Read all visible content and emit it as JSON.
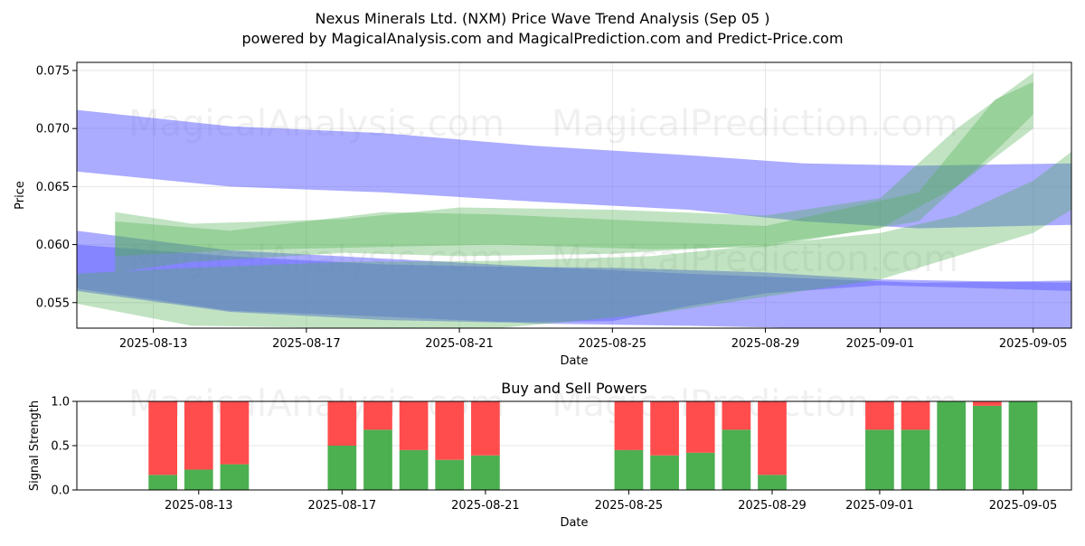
{
  "title": "Nexus Minerals Ltd. (NXM) Price Wave Trend Analysis (Sep 05 )",
  "subtitle": "powered by MagicalAnalysis.com and MagicalPrediction.com and Predict-Price.com",
  "watermarks": [
    "MagicalAnalysis.com",
    "MagicalPrediction.com"
  ],
  "colors": {
    "blue_band": "#6666ff",
    "green_band": "#4caf50",
    "buy": "#4caf50",
    "sell": "#ff4d4d"
  },
  "chart_data": [
    {
      "type": "area",
      "xlabel": "Date",
      "ylabel": "Price",
      "x_tick_labels": [
        "2025-08-13",
        "2025-08-17",
        "2025-08-21",
        "2025-08-25",
        "2025-08-29",
        "2025-09-01",
        "2025-09-05"
      ],
      "y_tick_labels": [
        "0.055",
        "0.060",
        "0.065",
        "0.070",
        "0.075"
      ],
      "ylim": [
        0.0528,
        0.0757
      ],
      "xlim": [
        "2025-08-11",
        "2025-09-06"
      ],
      "grid": true,
      "series": [
        {
          "band": "blue",
          "x": [
            "2025-08-11",
            "2025-08-15",
            "2025-08-19",
            "2025-08-23",
            "2025-08-27",
            "2025-08-30",
            "2025-09-02",
            "2025-09-06"
          ],
          "upper": [
            0.0716,
            0.0702,
            0.0696,
            0.0685,
            0.0677,
            0.067,
            0.0668,
            0.067
          ],
          "lower": [
            0.0663,
            0.065,
            0.0645,
            0.0637,
            0.063,
            0.062,
            0.0614,
            0.0617
          ]
        },
        {
          "band": "blue",
          "x": [
            "2025-08-11",
            "2025-08-15",
            "2025-08-19",
            "2025-08-23",
            "2025-08-27",
            "2025-08-30",
            "2025-09-02",
            "2025-09-06"
          ],
          "upper": [
            0.0612,
            0.0595,
            0.0588,
            0.0581,
            0.0575,
            0.0571,
            0.0567,
            0.0569
          ],
          "lower": [
            0.0562,
            0.0543,
            0.0538,
            0.0532,
            0.053,
            0.0528,
            0.0528,
            0.0528
          ]
        },
        {
          "band": "blue",
          "x": [
            "2025-08-11",
            "2025-08-15",
            "2025-08-19",
            "2025-08-22",
            "2025-08-25",
            "2025-08-27",
            "2025-08-29",
            "2025-09-01",
            "2025-09-06"
          ],
          "upper": [
            0.06,
            0.059,
            0.0583,
            0.0581,
            0.058,
            0.0578,
            0.0576,
            0.057,
            0.0567
          ],
          "lower": [
            0.056,
            0.0542,
            0.0535,
            0.0533,
            0.0534,
            0.0547,
            0.0558,
            0.0565,
            0.056
          ]
        },
        {
          "band": "green",
          "x": [
            "2025-08-11",
            "2025-08-14",
            "2025-08-18",
            "2025-08-22",
            "2025-08-26",
            "2025-08-29",
            "2025-09-01",
            "2025-09-03",
            "2025-09-05",
            "2025-09-06"
          ],
          "upper": [
            0.0575,
            0.058,
            0.0585,
            0.0586,
            0.059,
            0.06,
            0.061,
            0.0625,
            0.0655,
            0.068
          ],
          "lower": [
            0.0549,
            0.053,
            0.0528,
            0.0528,
            0.054,
            0.0555,
            0.057,
            0.059,
            0.061,
            0.063
          ]
        },
        {
          "band": "green",
          "x": [
            "2025-08-12",
            "2025-08-14",
            "2025-08-18",
            "2025-08-21",
            "2025-08-25",
            "2025-08-29",
            "2025-09-01",
            "2025-09-03",
            "2025-09-05"
          ],
          "upper": [
            0.0628,
            0.0618,
            0.0622,
            0.0632,
            0.063,
            0.0625,
            0.064,
            0.07,
            0.0748
          ],
          "lower": [
            0.0576,
            0.0585,
            0.0593,
            0.059,
            0.0592,
            0.06,
            0.0614,
            0.065,
            0.07
          ]
        },
        {
          "band": "green",
          "x": [
            "2025-08-12",
            "2025-08-15",
            "2025-08-19",
            "2025-08-22",
            "2025-08-26",
            "2025-08-29",
            "2025-09-02",
            "2025-09-04",
            "2025-09-05"
          ],
          "upper": [
            0.062,
            0.0612,
            0.0628,
            0.0626,
            0.062,
            0.0616,
            0.0645,
            0.0725,
            0.074
          ],
          "lower": [
            0.059,
            0.0595,
            0.0598,
            0.06,
            0.0596,
            0.0598,
            0.062,
            0.068,
            0.0712
          ]
        }
      ]
    },
    {
      "type": "bar",
      "title": "Buy and Sell Powers",
      "xlabel": "Date",
      "ylabel": "Signal Strength",
      "x_tick_labels": [
        "2025-08-13",
        "2025-08-17",
        "2025-08-21",
        "2025-08-25",
        "2025-08-29",
        "2025-09-01",
        "2025-09-05"
      ],
      "y_tick_labels": [
        "0.0",
        "0.5",
        "1.0"
      ],
      "ylim": [
        0,
        1
      ],
      "grid": true,
      "categories": [
        "2025-08-12",
        "2025-08-13",
        "2025-08-14",
        "2025-08-17",
        "2025-08-18",
        "2025-08-19",
        "2025-08-20",
        "2025-08-21",
        "2025-08-25",
        "2025-08-26",
        "2025-08-27",
        "2025-08-28",
        "2025-08-29",
        "2025-09-01",
        "2025-09-02",
        "2025-09-03",
        "2025-09-04",
        "2025-09-05"
      ],
      "series": [
        {
          "name": "buy",
          "values": [
            0.17,
            0.23,
            0.29,
            0.5,
            0.68,
            0.45,
            0.34,
            0.39,
            0.45,
            0.39,
            0.42,
            0.68,
            0.17,
            0.68,
            0.68,
            1.0,
            0.95,
            1.0
          ]
        },
        {
          "name": "sell",
          "values": [
            0.83,
            0.77,
            0.71,
            0.5,
            0.32,
            0.55,
            0.66,
            0.61,
            0.55,
            0.61,
            0.58,
            0.32,
            0.83,
            0.32,
            0.32,
            0.0,
            0.05,
            0.0
          ]
        }
      ]
    }
  ]
}
